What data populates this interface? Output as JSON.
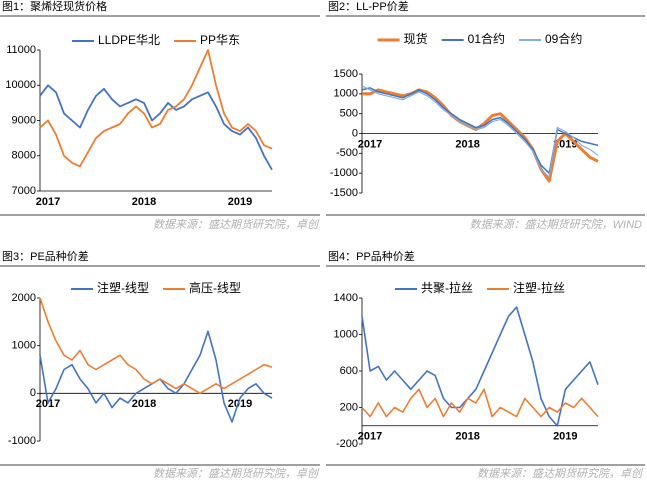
{
  "chart_data": [
    {
      "type": "line",
      "title": "图1：聚烯烃现货价格",
      "source": "数据来源：盛达期货研究院，卓创",
      "legend": "top",
      "categories": [
        "2017",
        null,
        null,
        null,
        null,
        null,
        null,
        null,
        null,
        null,
        null,
        null,
        "2018",
        null,
        null,
        null,
        null,
        null,
        null,
        null,
        null,
        null,
        null,
        null,
        "2019",
        null,
        null,
        null,
        null,
        null
      ],
      "ylim": [
        7000,
        11000
      ],
      "yticks": [
        7000,
        8000,
        9000,
        10000,
        11000
      ],
      "series": [
        {
          "name": "LLDPE华北",
          "color": "#4472c4",
          "values": [
            9700,
            10000,
            9800,
            9200,
            9000,
            8800,
            9300,
            9700,
            9900,
            9600,
            9400,
            9500,
            9600,
            9500,
            9000,
            9200,
            9500,
            9300,
            9400,
            9600,
            9700,
            9800,
            9400,
            8900,
            8700,
            8600,
            8800,
            8500,
            8000,
            7600
          ]
        },
        {
          "name": "PP华东",
          "color": "#ed7d31",
          "values": [
            8800,
            9000,
            8600,
            8000,
            7800,
            7700,
            8100,
            8500,
            8700,
            8800,
            8900,
            9200,
            9400,
            9200,
            8800,
            8900,
            9300,
            9400,
            9600,
            10000,
            10500,
            11000,
            10000,
            9200,
            8800,
            8700,
            8900,
            8700,
            8300,
            8200
          ]
        }
      ]
    },
    {
      "type": "line",
      "title": "图2：LL-PP价差",
      "source": "数据来源：盛达期货研究院，WIND",
      "legend": "top",
      "categories": [
        "2017",
        null,
        null,
        null,
        null,
        null,
        null,
        null,
        null,
        null,
        null,
        null,
        "2018",
        null,
        null,
        null,
        null,
        null,
        null,
        null,
        null,
        null,
        null,
        null,
        "2019",
        null,
        null,
        null,
        null,
        null
      ],
      "ylim": [
        -1500,
        1500
      ],
      "yticks": [
        -1500,
        -1000,
        -500,
        0,
        500,
        1000,
        1500
      ],
      "series": [
        {
          "name": "现货",
          "color": "#ed7d31",
          "values": [
            1000,
            1000,
            1100,
            1050,
            1000,
            950,
            1000,
            1100,
            1050,
            900,
            700,
            450,
            300,
            200,
            100,
            250,
            450,
            500,
            300,
            100,
            -100,
            -400,
            -900,
            -1200,
            -200,
            0,
            -200,
            -400,
            -600,
            -700
          ]
        },
        {
          "name": "01合约",
          "color": "#4472c4",
          "values": [
            1100,
            1150,
            1050,
            1000,
            950,
            900,
            1000,
            1100,
            1000,
            850,
            650,
            500,
            350,
            250,
            150,
            200,
            350,
            400,
            250,
            50,
            -150,
            -400,
            -800,
            -1000,
            100,
            0,
            -100,
            -200,
            -250,
            -300
          ]
        },
        {
          "name": "09合约",
          "color": "#7fb0e0",
          "values": [
            1200,
            1100,
            1000,
            950,
            900,
            850,
            950,
            1050,
            950,
            800,
            600,
            450,
            300,
            200,
            100,
            150,
            300,
            350,
            200,
            0,
            -200,
            -450,
            -900,
            -1100,
            150,
            50,
            -100,
            -300,
            -400,
            -550
          ]
        }
      ]
    },
    {
      "type": "line",
      "title": "图3：PE品种价差",
      "source": "数据来源：盛达期货研究院，卓创",
      "legend": "top",
      "categories": [
        "2017",
        null,
        null,
        null,
        null,
        null,
        null,
        null,
        null,
        null,
        null,
        null,
        "2018",
        null,
        null,
        null,
        null,
        null,
        null,
        null,
        null,
        null,
        null,
        null,
        "2019",
        null,
        null,
        null,
        null,
        null
      ],
      "ylim": [
        -1000,
        2000
      ],
      "yticks": [
        -1000,
        0,
        1000,
        2000
      ],
      "series": [
        {
          "name": "注塑-线型",
          "color": "#4472c4",
          "values": [
            800,
            -200,
            100,
            500,
            600,
            300,
            100,
            -200,
            0,
            -300,
            -100,
            -200,
            0,
            100,
            200,
            300,
            100,
            0,
            200,
            500,
            800,
            1300,
            700,
            -200,
            -600,
            -100,
            100,
            200,
            0,
            -100
          ]
        },
        {
          "name": "高压-线型",
          "color": "#ed7d31",
          "values": [
            2000,
            1500,
            1100,
            800,
            700,
            900,
            600,
            500,
            600,
            700,
            800,
            600,
            500,
            300,
            200,
            300,
            200,
            100,
            200,
            100,
            0,
            100,
            200,
            100,
            200,
            300,
            400,
            500,
            600,
            550
          ]
        }
      ]
    },
    {
      "type": "line",
      "title": "图4：PP品种价差",
      "source": "数据来源：盛达期货研究院，卓创",
      "legend": "top",
      "categories": [
        "2017",
        null,
        null,
        null,
        null,
        null,
        null,
        null,
        null,
        null,
        null,
        null,
        "2018",
        null,
        null,
        null,
        null,
        null,
        null,
        null,
        null,
        null,
        null,
        null,
        "2019",
        null,
        null,
        null,
        null,
        null
      ],
      "ylim": [
        -200,
        1400
      ],
      "yticks": [
        -200,
        200,
        600,
        1000,
        1400
      ],
      "series": [
        {
          "name": "共聚-拉丝",
          "color": "#4472c4",
          "values": [
            1200,
            600,
            650,
            500,
            600,
            500,
            400,
            500,
            600,
            550,
            300,
            200,
            200,
            300,
            400,
            600,
            800,
            1000,
            1200,
            1300,
            1000,
            700,
            300,
            100,
            0,
            400,
            500,
            600,
            700,
            450
          ]
        },
        {
          "name": "注塑-拉丝",
          "color": "#ed7d31",
          "values": [
            200,
            100,
            250,
            100,
            200,
            150,
            300,
            400,
            200,
            300,
            100,
            250,
            150,
            300,
            250,
            400,
            100,
            200,
            150,
            100,
            300,
            200,
            100,
            200,
            150,
            250,
            200,
            300,
            200,
            100
          ]
        }
      ]
    }
  ]
}
